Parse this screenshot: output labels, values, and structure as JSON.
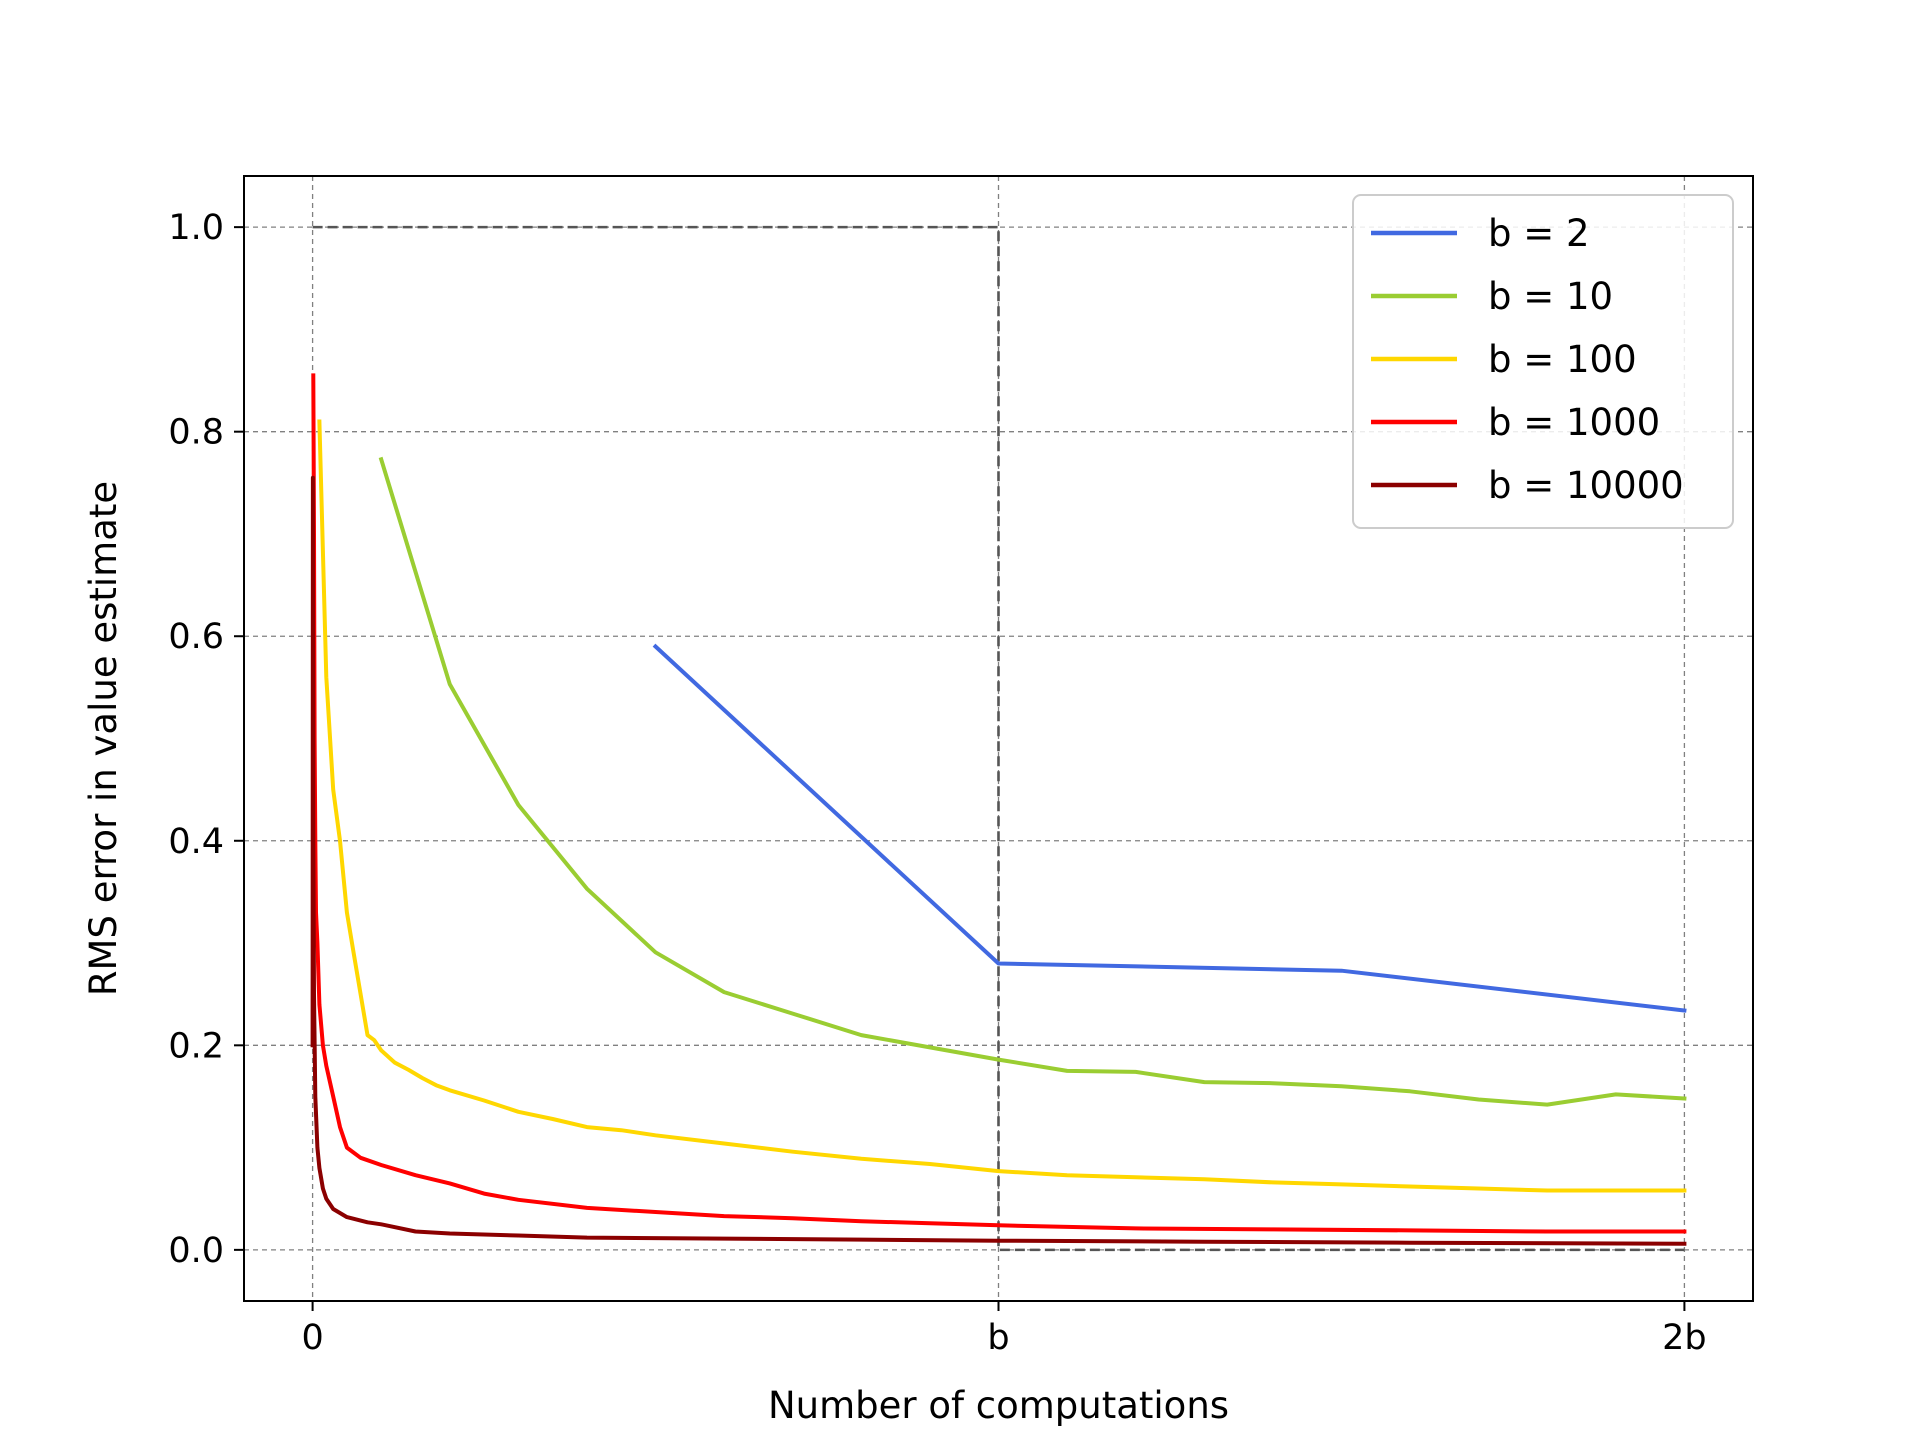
{
  "chart_data": {
    "type": "line",
    "title": "",
    "xlabel": "Number of computations",
    "ylabel": "RMS error in value estimate",
    "x_unit": "b",
    "xlim": [
      -0.1,
      2.1
    ],
    "ylim": [
      -0.05,
      1.05
    ],
    "x_ticks": [
      {
        "value": 0,
        "label": "0"
      },
      {
        "value": 1,
        "label": "b"
      },
      {
        "value": 2,
        "label": "2b"
      }
    ],
    "y_ticks": [
      {
        "value": 0.0,
        "label": "0.0"
      },
      {
        "value": 0.2,
        "label": "0.2"
      },
      {
        "value": 0.4,
        "label": "0.4"
      },
      {
        "value": 0.6,
        "label": "0.6"
      },
      {
        "value": 0.8,
        "label": "0.8"
      },
      {
        "value": 1.0,
        "label": "1.0"
      }
    ],
    "grid": true,
    "legend_position": "top-right",
    "reference_box": {
      "x": [
        0,
        1
      ],
      "y": [
        0,
        1
      ]
    },
    "series": [
      {
        "name": "b = 2",
        "color": "#4169E1",
        "points": [
          [
            0.5,
            0.59
          ],
          [
            1.0,
            0.28
          ],
          [
            1.5,
            0.273
          ],
          [
            2.0,
            0.234
          ]
        ]
      },
      {
        "name": "b = 10",
        "color": "#9ACD32",
        "points": [
          [
            0.1,
            0.773
          ],
          [
            0.2,
            0.553
          ],
          [
            0.3,
            0.435
          ],
          [
            0.4,
            0.353
          ],
          [
            0.5,
            0.291
          ],
          [
            0.6,
            0.252
          ],
          [
            0.7,
            0.231
          ],
          [
            0.8,
            0.21
          ],
          [
            0.9,
            0.198
          ],
          [
            1.0,
            0.186
          ],
          [
            1.1,
            0.175
          ],
          [
            1.2,
            0.174
          ],
          [
            1.3,
            0.164
          ],
          [
            1.4,
            0.163
          ],
          [
            1.5,
            0.16
          ],
          [
            1.6,
            0.155
          ],
          [
            1.7,
            0.147
          ],
          [
            1.8,
            0.142
          ],
          [
            1.9,
            0.152
          ],
          [
            2.0,
            0.148
          ]
        ]
      },
      {
        "name": "b = 100",
        "color": "#FFD700",
        "points": [
          [
            0.01,
            0.81
          ],
          [
            0.02,
            0.56
          ],
          [
            0.03,
            0.45
          ],
          [
            0.04,
            0.4
          ],
          [
            0.05,
            0.33
          ],
          [
            0.06,
            0.29
          ],
          [
            0.07,
            0.25
          ],
          [
            0.08,
            0.21
          ],
          [
            0.09,
            0.205
          ],
          [
            0.1,
            0.195
          ],
          [
            0.12,
            0.183
          ],
          [
            0.14,
            0.176
          ],
          [
            0.16,
            0.168
          ],
          [
            0.18,
            0.161
          ],
          [
            0.2,
            0.156
          ],
          [
            0.25,
            0.146
          ],
          [
            0.3,
            0.135
          ],
          [
            0.35,
            0.128
          ],
          [
            0.4,
            0.12
          ],
          [
            0.45,
            0.117
          ],
          [
            0.5,
            0.112
          ],
          [
            0.6,
            0.104
          ],
          [
            0.7,
            0.096
          ],
          [
            0.8,
            0.089
          ],
          [
            0.9,
            0.084
          ],
          [
            1.0,
            0.077
          ],
          [
            1.1,
            0.073
          ],
          [
            1.2,
            0.071
          ],
          [
            1.3,
            0.069
          ],
          [
            1.4,
            0.066
          ],
          [
            1.5,
            0.064
          ],
          [
            1.6,
            0.062
          ],
          [
            1.7,
            0.06
          ],
          [
            1.8,
            0.058
          ],
          [
            1.9,
            0.058
          ],
          [
            2.0,
            0.058
          ]
        ]
      },
      {
        "name": "b = 1000",
        "color": "#FF0000",
        "points": [
          [
            0.001,
            0.855
          ],
          [
            0.002,
            0.7
          ],
          [
            0.003,
            0.5
          ],
          [
            0.004,
            0.4
          ],
          [
            0.005,
            0.33
          ],
          [
            0.007,
            0.3
          ],
          [
            0.01,
            0.24
          ],
          [
            0.015,
            0.2
          ],
          [
            0.02,
            0.18
          ],
          [
            0.03,
            0.15
          ],
          [
            0.04,
            0.12
          ],
          [
            0.05,
            0.1
          ],
          [
            0.07,
            0.09
          ],
          [
            0.1,
            0.083
          ],
          [
            0.15,
            0.073
          ],
          [
            0.2,
            0.065
          ],
          [
            0.25,
            0.055
          ],
          [
            0.3,
            0.049
          ],
          [
            0.4,
            0.041
          ],
          [
            0.5,
            0.037
          ],
          [
            0.6,
            0.033
          ],
          [
            0.7,
            0.031
          ],
          [
            0.8,
            0.028
          ],
          [
            0.9,
            0.026
          ],
          [
            1.0,
            0.024
          ],
          [
            1.2,
            0.021
          ],
          [
            1.4,
            0.02
          ],
          [
            1.6,
            0.019
          ],
          [
            1.8,
            0.018
          ],
          [
            2.0,
            0.018
          ]
        ]
      },
      {
        "name": "b = 10000",
        "color": "#8B0000",
        "points": [
          [
            0.0,
            0.2
          ],
          [
            0.0005,
            0.755
          ],
          [
            0.001,
            0.4
          ],
          [
            0.002,
            0.25
          ],
          [
            0.004,
            0.15
          ],
          [
            0.007,
            0.1
          ],
          [
            0.01,
            0.08
          ],
          [
            0.015,
            0.06
          ],
          [
            0.02,
            0.05
          ],
          [
            0.03,
            0.04
          ],
          [
            0.05,
            0.032
          ],
          [
            0.08,
            0.027
          ],
          [
            0.1,
            0.025
          ],
          [
            0.15,
            0.018
          ],
          [
            0.2,
            0.016
          ],
          [
            0.3,
            0.014
          ],
          [
            0.4,
            0.012
          ],
          [
            0.6,
            0.011
          ],
          [
            0.8,
            0.01
          ],
          [
            1.0,
            0.009
          ],
          [
            1.3,
            0.008
          ],
          [
            1.6,
            0.007
          ],
          [
            2.0,
            0.006
          ]
        ]
      }
    ]
  }
}
